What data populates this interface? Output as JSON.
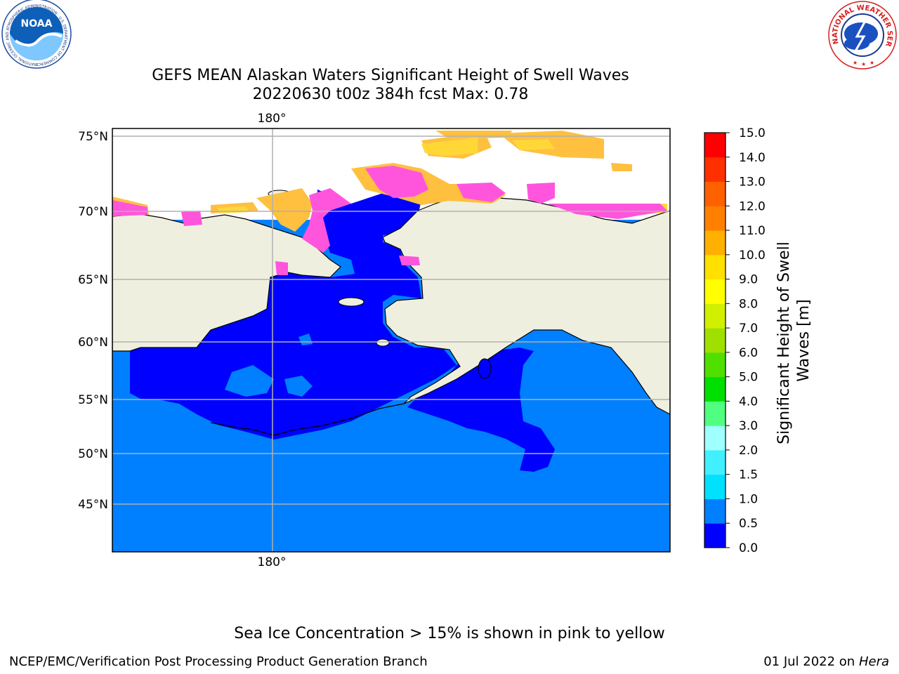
{
  "header": {
    "title_line1": "GEFS MEAN Alaskan Waters Significant Height of Swell Waves",
    "title_line2": "20220630 t00z 384h fcst    Max: 0.78"
  },
  "logos": {
    "noaa_text": "NOAA",
    "noaa_ring_text": "NATIONAL OCEANIC AND ATMOSPHERIC ADMINISTRATION · U.S. DEPARTMENT OF COMMERCE",
    "nws_ring_text": "NATIONAL WEATHER SERVICE"
  },
  "map": {
    "lon_label_top": "180°",
    "lon_label_bottom": "180°",
    "lat_labels": [
      "75°N",
      "70°N",
      "65°N",
      "60°N",
      "55°N",
      "50°N",
      "45°N"
    ],
    "colors": {
      "land": "#efefdf",
      "ocean_low": "#0000ff",
      "ocean_mid": "#0080ff",
      "sea_ice_pink": "#ff55dd",
      "sea_ice_orange": "#ffb030",
      "sea_ice_yellow": "#ffd030",
      "grid": "#b0b0b0",
      "coast": "#000000"
    }
  },
  "colorbar": {
    "label_line1": "Significant Height of Swell",
    "label_line2": "Waves [m]",
    "ticks": [
      "0.0",
      "0.5",
      "1.0",
      "1.5",
      "2.0",
      "3.0",
      "4.0",
      "5.0",
      "6.0",
      "7.0",
      "8.0",
      "9.0",
      "10.0",
      "11.0",
      "12.0",
      "13.0",
      "14.0",
      "15.0"
    ],
    "colors": [
      "#0000ff",
      "#0080ff",
      "#00e0ff",
      "#40f0ff",
      "#a0ffff",
      "#50ff80",
      "#00e000",
      "#50e000",
      "#a0e000",
      "#d0f000",
      "#ffff00",
      "#ffe000",
      "#ffb000",
      "#ff8000",
      "#ff6000",
      "#ff3000",
      "#ff0000"
    ]
  },
  "footer": {
    "sea_ice_note": "Sea Ice Concentration > 15% is shown in pink to yellow",
    "credit_left": "NCEP/EMC/Verification Post Processing Product Generation Branch",
    "credit_date": "01 Jul 2022 on ",
    "credit_host": "Hera"
  }
}
